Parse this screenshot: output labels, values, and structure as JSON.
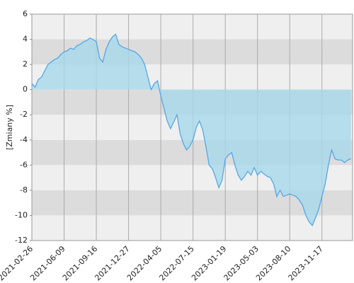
{
  "chart_data": {
    "type": "area",
    "y_label": "[Zmiany %]",
    "categories": [
      "2021-02-26",
      null,
      null,
      null,
      null,
      null,
      null,
      null,
      null,
      null,
      "2021-06-09",
      null,
      null,
      null,
      null,
      null,
      null,
      null,
      null,
      null,
      "2021-09-16",
      null,
      null,
      null,
      null,
      null,
      null,
      null,
      null,
      null,
      "2021-12-27",
      null,
      null,
      null,
      null,
      null,
      null,
      null,
      null,
      null,
      "2022-04-05",
      null,
      null,
      null,
      null,
      null,
      null,
      null,
      null,
      null,
      "2022-07-15",
      null,
      null,
      null,
      null,
      null,
      null,
      null,
      null,
      null,
      "2023-01-19",
      null,
      null,
      null,
      null,
      null,
      null,
      null,
      null,
      null,
      "2023-05-03",
      null,
      null,
      null,
      null,
      null,
      null,
      null,
      null,
      null,
      "2023-08-10",
      null,
      null,
      null,
      null,
      null,
      null,
      null,
      null,
      null,
      "2023-11-17",
      null,
      null,
      null,
      null,
      null,
      null,
      null,
      null,
      null
    ],
    "values": [
      0.5,
      0.2,
      0.8,
      1.0,
      1.5,
      2.0,
      2.2,
      2.4,
      2.5,
      2.8,
      3.0,
      3.1,
      3.3,
      3.2,
      3.5,
      3.6,
      3.8,
      3.9,
      4.1,
      4.0,
      3.8,
      2.5,
      2.2,
      3.2,
      3.8,
      4.2,
      4.4,
      3.6,
      3.4,
      3.3,
      3.2,
      3.1,
      3.0,
      2.8,
      2.5,
      2.0,
      1.0,
      0.0,
      0.5,
      0.7,
      -0.5,
      -1.5,
      -2.5,
      -3.1,
      -2.6,
      -2.0,
      -3.5,
      -4.3,
      -4.8,
      -4.5,
      -4.0,
      -3.0,
      -2.5,
      -3.2,
      -4.5,
      -6.0,
      -6.3,
      -7.0,
      -7.8,
      -7.2,
      -5.5,
      -5.2,
      -5.0,
      -6.0,
      -6.8,
      -7.2,
      -6.9,
      -6.5,
      -6.8,
      -6.2,
      -6.8,
      -6.5,
      -6.7,
      -6.9,
      -7.0,
      -7.5,
      -8.5,
      -8.0,
      -8.5,
      -8.4,
      -8.3,
      -8.4,
      -8.5,
      -8.8,
      -9.2,
      -10.0,
      -10.5,
      -10.8,
      -10.2,
      -9.5,
      -8.5,
      -7.5,
      -6.0,
      -4.8,
      -5.5,
      -5.6,
      -5.6,
      -5.8,
      -5.6,
      -5.5
    ],
    "color": "#4aa3e8",
    "fill": "#a8d8ea",
    "ylim": [
      -12,
      6
    ],
    "yticks": [
      -12,
      -10,
      -8,
      -6,
      -4,
      -2,
      0,
      2,
      4,
      6
    ],
    "band_colors": [
      "#efefef",
      "#dcdcdc"
    ]
  }
}
